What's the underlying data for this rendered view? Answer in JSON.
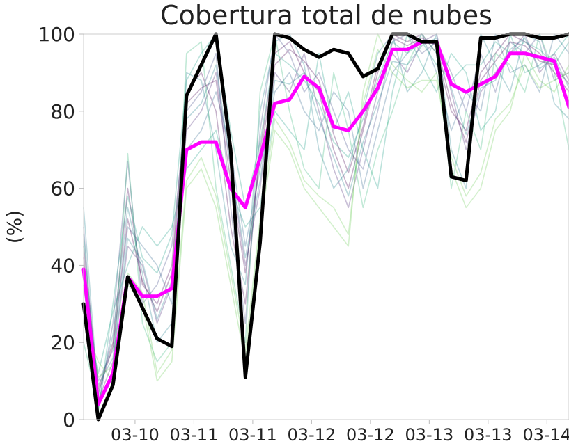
{
  "chart_data": {
    "type": "line",
    "title": "Cobertura total de nubes",
    "ylabel": "(%)",
    "xlabel": "",
    "ylim": [
      0,
      100
    ],
    "yticks": [
      0,
      20,
      40,
      60,
      80,
      100
    ],
    "xtick_labels": [
      "03-10",
      "03-11",
      "03-11",
      "03-12",
      "03-12",
      "03-13",
      "03-13",
      "03-14"
    ],
    "grid": false,
    "legend": "none",
    "x_count": 34,
    "series": [
      {
        "role": "ensemble_mean",
        "color": "#ff00ff",
        "values": [
          39,
          4,
          12,
          37,
          32,
          32,
          34,
          70,
          72,
          72,
          60,
          55,
          68,
          82,
          83,
          89,
          86,
          76,
          75,
          80,
          86,
          96,
          96,
          98,
          98,
          87,
          85,
          87,
          89,
          95,
          95,
          94,
          93,
          81
        ]
      },
      {
        "role": "deterministic",
        "color": "#000000",
        "values": [
          30,
          0,
          9,
          37,
          29,
          21,
          19,
          84,
          92,
          100,
          70,
          11,
          46,
          100,
          99,
          96,
          94,
          96,
          95,
          89,
          91,
          100,
          100,
          98,
          98,
          63,
          62,
          99,
          99,
          100,
          100,
          99,
          99,
          100
        ]
      }
    ],
    "ensemble_members": [
      {
        "color": "#440154",
        "values": [
          45,
          8,
          20,
          60,
          35,
          30,
          40,
          85,
          90,
          80,
          50,
          30,
          70,
          95,
          98,
          90,
          85,
          70,
          60,
          75,
          90,
          100,
          98,
          100,
          95,
          80,
          75,
          90,
          95,
          100,
          98,
          95,
          90,
          85
        ]
      },
      {
        "color": "#482878",
        "values": [
          35,
          5,
          15,
          45,
          40,
          25,
          35,
          75,
          80,
          90,
          65,
          40,
          60,
          90,
          85,
          95,
          80,
          65,
          55,
          70,
          85,
          95,
          90,
          98,
          100,
          85,
          70,
          85,
          90,
          95,
          100,
          90,
          95,
          88
        ]
      },
      {
        "color": "#3e4989",
        "values": [
          50,
          3,
          25,
          67,
          30,
          35,
          45,
          80,
          85,
          95,
          55,
          25,
          75,
          100,
          95,
          85,
          90,
          80,
          70,
          65,
          80,
          98,
          100,
          95,
          98,
          90,
          80,
          95,
          85,
          98,
          95,
          100,
          88,
          90
        ]
      },
      {
        "color": "#31688e",
        "values": [
          40,
          10,
          18,
          50,
          45,
          40,
          30,
          70,
          75,
          85,
          70,
          45,
          65,
          85,
          90,
          80,
          75,
          85,
          80,
          60,
          75,
          90,
          95,
          100,
          90,
          75,
          85,
          80,
          100,
          90,
          92,
          85,
          100,
          95
        ]
      },
      {
        "color": "#26828e",
        "values": [
          55,
          6,
          22,
          55,
          38,
          20,
          25,
          90,
          88,
          70,
          45,
          35,
          80,
          98,
          100,
          92,
          70,
          60,
          65,
          80,
          95,
          100,
          85,
          90,
          100,
          70,
          60,
          100,
          92,
          85,
          100,
          98,
          82,
          78
        ]
      },
      {
        "color": "#1f9e89",
        "values": [
          30,
          12,
          28,
          40,
          50,
          45,
          50,
          65,
          70,
          75,
          60,
          50,
          55,
          80,
          75,
          70,
          95,
          75,
          85,
          70,
          60,
          85,
          100,
          92,
          85,
          95,
          90,
          75,
          80,
          100,
          90,
          92,
          95,
          100
        ]
      },
      {
        "color": "#35b779",
        "values": [
          20,
          4,
          12,
          69,
          25,
          15,
          20,
          95,
          98,
          60,
          40,
          20,
          85,
          100,
          80,
          65,
          60,
          90,
          75,
          55,
          70,
          80,
          92,
          100,
          95,
          60,
          80,
          70,
          95,
          92,
          85,
          100,
          90,
          70
        ]
      },
      {
        "color": "#6ece58",
        "values": [
          25,
          15,
          10,
          35,
          30,
          10,
          15,
          60,
          65,
          55,
          35,
          15,
          50,
          75,
          70,
          60,
          55,
          50,
          45,
          85,
          100,
          92,
          88,
          85,
          90,
          65,
          55,
          60,
          75,
          80,
          95,
          88,
          85,
          92
        ]
      },
      {
        "color": "#1f9e89",
        "values": [
          48,
          2,
          30,
          58,
          42,
          38,
          48,
          88,
          95,
          100,
          75,
          55,
          72,
          95,
          92,
          88,
          82,
          72,
          68,
          78,
          88,
          98,
          95,
          98,
          92,
          88,
          92,
          92,
          98,
          95,
          98,
          96,
          92,
          98
        ]
      },
      {
        "color": "#440154",
        "values": [
          42,
          7,
          19,
          52,
          36,
          28,
          38,
          82,
          86,
          88,
          62,
          38,
          68,
          92,
          96,
          93,
          88,
          74,
          64,
          76,
          92,
          99,
          97,
          99,
          97,
          82,
          72,
          88,
          93,
          98,
          97,
          93,
          92,
          87
        ]
      },
      {
        "color": "#26828e",
        "values": [
          38,
          9,
          16,
          47,
          41,
          26,
          36,
          78,
          82,
          92,
          66,
          42,
          62,
          88,
          87,
          90,
          78,
          68,
          58,
          72,
          82,
          93,
          92,
          97,
          99,
          86,
          74,
          86,
          88,
          96,
          99,
          91,
          94,
          86
        ]
      },
      {
        "color": "#6ece58",
        "values": [
          28,
          11,
          14,
          38,
          33,
          12,
          18,
          62,
          68,
          58,
          38,
          18,
          52,
          78,
          72,
          62,
          58,
          55,
          48,
          82,
          96,
          90,
          86,
          88,
          88,
          68,
          58,
          64,
          78,
          82,
          92,
          86,
          88,
          90
        ]
      }
    ]
  }
}
